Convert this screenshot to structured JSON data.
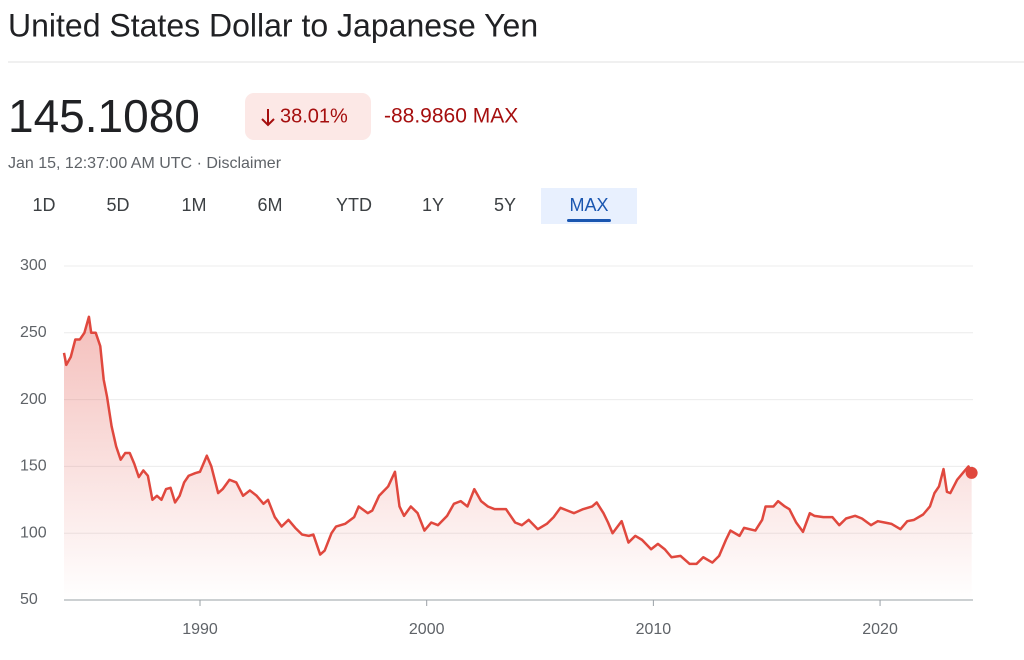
{
  "header": {
    "title": "United States Dollar to Japanese Yen"
  },
  "quote": {
    "price": "145.1080",
    "change_percent": "38.01%",
    "change": "-88.9860 MAX",
    "timestamp": "Jan 15, 12:37:00 AM UTC",
    "separator": "·",
    "disclaimer": "Disclaimer"
  },
  "tabs": {
    "items": [
      "1D",
      "5D",
      "1M",
      "6M",
      "YTD",
      "1Y",
      "5Y",
      "MAX"
    ],
    "active": 7
  },
  "chart_data": {
    "type": "line",
    "x": [
      1984.0,
      1984.1,
      1984.3,
      1984.5,
      1984.7,
      1984.9,
      1985.1,
      1985.2,
      1985.4,
      1985.6,
      1985.75,
      1985.9,
      1986.1,
      1986.3,
      1986.5,
      1986.7,
      1986.9,
      1987.1,
      1987.3,
      1987.5,
      1987.7,
      1987.9,
      1988.1,
      1988.3,
      1988.5,
      1988.7,
      1988.9,
      1989.1,
      1989.3,
      1989.5,
      1989.8,
      1990.0,
      1990.3,
      1990.5,
      1990.8,
      1991.0,
      1991.3,
      1991.6,
      1991.9,
      1992.2,
      1992.5,
      1992.8,
      1993.0,
      1993.3,
      1993.6,
      1993.9,
      1994.2,
      1994.5,
      1994.8,
      1995.0,
      1995.3,
      1995.5,
      1995.8,
      1996.0,
      1996.4,
      1996.8,
      1997.0,
      1997.4,
      1997.6,
      1997.9,
      1998.3,
      1998.6,
      1998.8,
      1999.0,
      1999.3,
      1999.6,
      1999.9,
      2000.2,
      2000.5,
      2000.9,
      2001.2,
      2001.5,
      2001.8,
      2002.1,
      2002.4,
      2002.7,
      2003.0,
      2003.5,
      2003.9,
      2004.2,
      2004.5,
      2004.9,
      2005.3,
      2005.6,
      2005.9,
      2006.2,
      2006.5,
      2006.9,
      2007.3,
      2007.5,
      2007.8,
      2008.0,
      2008.2,
      2008.6,
      2008.9,
      2009.2,
      2009.5,
      2009.9,
      2010.2,
      2010.5,
      2010.8,
      2011.2,
      2011.6,
      2011.9,
      2012.2,
      2012.6,
      2012.9,
      2013.2,
      2013.4,
      2013.8,
      2014.0,
      2014.5,
      2014.8,
      2014.95,
      2015.3,
      2015.5,
      2015.8,
      2016.0,
      2016.3,
      2016.6,
      2016.9,
      2017.1,
      2017.5,
      2017.9,
      2018.2,
      2018.5,
      2018.9,
      2019.2,
      2019.6,
      2019.9,
      2020.2,
      2020.5,
      2020.9,
      2021.2,
      2021.5,
      2021.9,
      2022.2,
      2022.4,
      2022.6,
      2022.8,
      2022.95,
      2023.1,
      2023.4,
      2023.7,
      2023.9,
      2024.04
    ],
    "series": [
      {
        "color": "#e0483e",
        "values": [
          235,
          226,
          232,
          245,
          245,
          250,
          262,
          250,
          250,
          240,
          215,
          202,
          180,
          165,
          155,
          160,
          160,
          152,
          142,
          147,
          143,
          125,
          128,
          125,
          133,
          134,
          123,
          128,
          138,
          143,
          145,
          146,
          158,
          150,
          130,
          133,
          140,
          138,
          128,
          132,
          128,
          122,
          125,
          112,
          105,
          110,
          104,
          99,
          98,
          99,
          84,
          87,
          100,
          105,
          107,
          112,
          120,
          115,
          117,
          128,
          135,
          146,
          120,
          113,
          120,
          115,
          102,
          108,
          106,
          113,
          122,
          124,
          120,
          133,
          124,
          120,
          118,
          118,
          108,
          106,
          110,
          103,
          107,
          112,
          119,
          117,
          115,
          118,
          120,
          123,
          115,
          108,
          100,
          109,
          93,
          98,
          95,
          88,
          92,
          88,
          82,
          83,
          77,
          77,
          82,
          78,
          83,
          95,
          102,
          98,
          104,
          102,
          110,
          120,
          120,
          124,
          120,
          118,
          108,
          101,
          115,
          113,
          112,
          112,
          106,
          111,
          113,
          111,
          106,
          109,
          108,
          107,
          103,
          109,
          110,
          114,
          120,
          130,
          135,
          148,
          131,
          130,
          140,
          146,
          150,
          145.108
        ]
      }
    ],
    "xlim": [
      1984,
      2024.1
    ],
    "xticks": [
      1990,
      2000,
      2010,
      2020
    ],
    "ylim": [
      50,
      300
    ],
    "yticks": [
      50,
      100,
      150,
      200,
      250,
      300
    ],
    "grid": true
  }
}
